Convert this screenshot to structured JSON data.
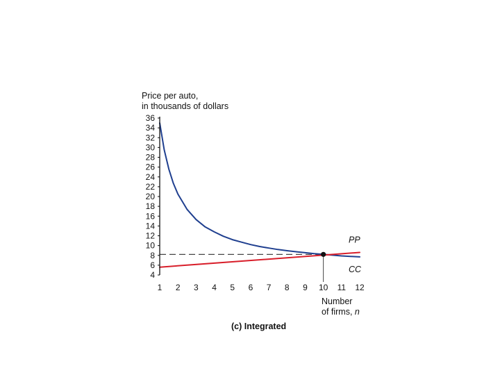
{
  "chart_data": {
    "type": "line",
    "ylabel_lines": [
      "Price per auto,",
      "in thousands of dollars"
    ],
    "xlabel_lines": [
      "Number",
      "of firms, "
    ],
    "xlabel_var": "n",
    "caption": "(c) Integrated",
    "xlim": [
      1,
      12
    ],
    "ylim": [
      4,
      36
    ],
    "x_ticks": [
      1,
      2,
      3,
      4,
      5,
      6,
      7,
      8,
      9,
      10,
      11,
      12
    ],
    "y_ticks": [
      4,
      6,
      8,
      10,
      12,
      14,
      16,
      18,
      20,
      22,
      24,
      26,
      28,
      30,
      32,
      34,
      36
    ],
    "series": [
      {
        "name": "CC",
        "color": "#1f3f8f",
        "x": [
          1,
          1.25,
          1.5,
          1.75,
          2,
          2.5,
          3,
          3.5,
          4,
          4.5,
          5,
          5.5,
          6,
          6.5,
          7,
          7.5,
          8,
          8.5,
          9,
          9.5,
          10,
          10.5,
          11,
          11.5,
          12
        ],
        "y": [
          35.0,
          29.5,
          25.6,
          22.7,
          20.5,
          17.4,
          15.3,
          13.8,
          12.8,
          11.9,
          11.2,
          10.7,
          10.2,
          9.8,
          9.5,
          9.2,
          8.95,
          8.75,
          8.55,
          8.35,
          8.2,
          8.05,
          7.9,
          7.8,
          7.7
        ]
      },
      {
        "name": "PP",
        "color": "#d81e2a",
        "x": [
          1,
          12
        ],
        "y": [
          5.6,
          8.6
        ]
      }
    ],
    "equilibrium": {
      "x": 10,
      "y": 8.2
    },
    "grid": false,
    "legend": "none"
  }
}
